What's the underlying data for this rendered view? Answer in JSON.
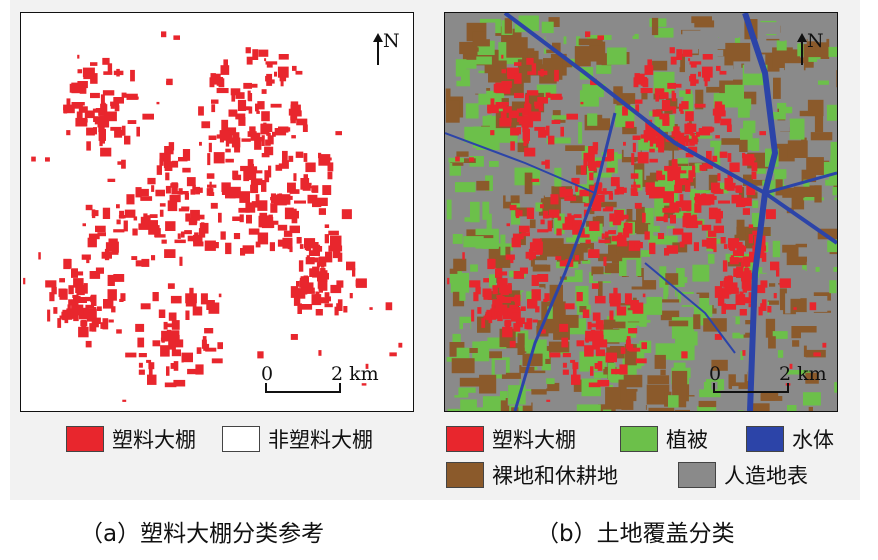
{
  "colors": {
    "greenhouse": "#e8262d",
    "non_greenhouse": "#ffffff",
    "vegetation": "#6cc04a",
    "water": "#2c44a8",
    "bare_fallow": "#8b5a2b",
    "artificial": "#8a8a8a"
  },
  "panel_a": {
    "north_label": "N",
    "scale_zero": "0",
    "scale_dist": "2 km",
    "caption": "（a）塑料大棚分类参考"
  },
  "panel_b": {
    "north_label": "N",
    "scale_zero": "0",
    "scale_dist": "2 km",
    "caption": "（b）土地覆盖分类"
  },
  "legend_a": [
    {
      "label": "塑料大棚",
      "color": "#e8262d"
    },
    {
      "label": "非塑料大棚",
      "color": "#ffffff"
    }
  ],
  "legend_b": [
    {
      "label": "塑料大棚",
      "color": "#e8262d"
    },
    {
      "label": "植被",
      "color": "#6cc04a"
    },
    {
      "label": "水体",
      "color": "#2c44a8"
    },
    {
      "label": "裸地和休耕地",
      "color": "#8b5a2b"
    },
    {
      "label": "人造地表",
      "color": "#8a8a8a"
    }
  ]
}
